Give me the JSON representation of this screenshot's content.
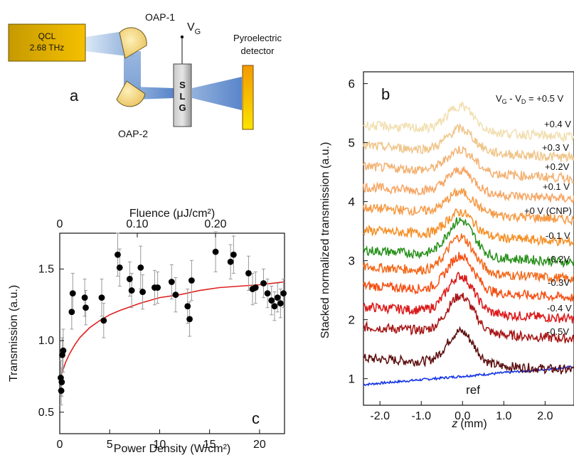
{
  "panel_a": {
    "letter": "a",
    "source_line1": "QCL",
    "source_line2": "2.68 THz",
    "oap1": "OAP-1",
    "oap2": "OAP-2",
    "gate_label": "V",
    "gate_sub": "G",
    "slg_letters": [
      "S",
      "L",
      "G"
    ],
    "detector_line1": "Pyroelectric",
    "detector_line2": "detector"
  },
  "chart_data": [
    {
      "type": "scatter",
      "panel_letter": "c",
      "xlabel": "Power Density (W/cm²)",
      "x_top_label": "Fluence (μJ/cm²)",
      "ylabel": "Transmission (a.u.)",
      "xlim": [
        0,
        22.5
      ],
      "ylim": [
        0.35,
        1.75
      ],
      "x_ticks": [
        "0",
        "5",
        "10",
        "15",
        "20"
      ],
      "x_top_ticks": [
        "0",
        "0.10",
        "0.20"
      ],
      "y_ticks": [
        "0.5",
        "1.0",
        "1.5"
      ],
      "points": [
        {
          "x": 0.1,
          "y": 0.74,
          "err": 0.12
        },
        {
          "x": 0.15,
          "y": 0.65,
          "err": 0.1
        },
        {
          "x": 0.2,
          "y": 0.71,
          "err": 0.1
        },
        {
          "x": 0.25,
          "y": 0.9,
          "err": 0.12
        },
        {
          "x": 0.35,
          "y": 0.93,
          "err": 0.15
        },
        {
          "x": 1.2,
          "y": 1.2,
          "err": 0.12
        },
        {
          "x": 1.3,
          "y": 1.33,
          "err": 0.14
        },
        {
          "x": 2.5,
          "y": 1.3,
          "err": 0.13
        },
        {
          "x": 2.6,
          "y": 1.23,
          "err": 0.12
        },
        {
          "x": 4.2,
          "y": 1.3,
          "err": 0.13
        },
        {
          "x": 4.4,
          "y": 1.14,
          "err": 0.12
        },
        {
          "x": 5.8,
          "y": 1.6,
          "err": 0.15
        },
        {
          "x": 6.0,
          "y": 1.51,
          "err": 0.13
        },
        {
          "x": 7.0,
          "y": 1.43,
          "err": 0.12
        },
        {
          "x": 7.2,
          "y": 1.35,
          "err": 0.12
        },
        {
          "x": 8.1,
          "y": 1.51,
          "err": 0.15
        },
        {
          "x": 8.3,
          "y": 1.34,
          "err": 0.12
        },
        {
          "x": 9.5,
          "y": 1.37,
          "err": 0.12
        },
        {
          "x": 9.8,
          "y": 1.37,
          "err": 0.11
        },
        {
          "x": 11.2,
          "y": 1.41,
          "err": 0.12
        },
        {
          "x": 11.6,
          "y": 1.32,
          "err": 0.12
        },
        {
          "x": 12.8,
          "y": 1.24,
          "err": 0.12
        },
        {
          "x": 13.0,
          "y": 1.15,
          "err": 0.12
        },
        {
          "x": 13.2,
          "y": 1.42,
          "err": 0.14
        },
        {
          "x": 15.6,
          "y": 1.62,
          "err": 0.14
        },
        {
          "x": 17.1,
          "y": 1.55,
          "err": 0.12
        },
        {
          "x": 17.4,
          "y": 1.6,
          "err": 0.13
        },
        {
          "x": 18.9,
          "y": 1.47,
          "err": 0.12
        },
        {
          "x": 19.3,
          "y": 1.36,
          "err": 0.11
        },
        {
          "x": 19.6,
          "y": 1.37,
          "err": 0.11
        },
        {
          "x": 20.4,
          "y": 1.4,
          "err": 0.1
        },
        {
          "x": 20.8,
          "y": 1.33,
          "err": 0.1
        },
        {
          "x": 21.2,
          "y": 1.28,
          "err": 0.1
        },
        {
          "x": 21.5,
          "y": 1.24,
          "err": 0.1
        },
        {
          "x": 21.8,
          "y": 1.3,
          "err": 0.1
        },
        {
          "x": 22.1,
          "y": 1.26,
          "err": 0.1
        },
        {
          "x": 22.4,
          "y": 1.33,
          "err": 0.1
        }
      ],
      "fit_curve": {
        "color": "#e02020",
        "x": [
          0.05,
          0.3,
          0.6,
          1,
          1.5,
          2,
          3,
          4,
          5,
          6,
          8,
          10,
          12,
          14,
          16,
          18,
          20,
          22.5
        ],
        "y": [
          0.74,
          0.79,
          0.85,
          0.91,
          0.97,
          1.02,
          1.09,
          1.14,
          1.18,
          1.21,
          1.26,
          1.3,
          1.32,
          1.35,
          1.37,
          1.38,
          1.39,
          1.41
        ]
      },
      "marker_color": "#000000"
    },
    {
      "type": "line",
      "panel_letter": "b",
      "xlabel_italic": "z",
      "xlabel_unit": "(mm)",
      "ylabel": "Stacked normalized transmission (a.u.)",
      "xlim": [
        -2.4,
        2.7
      ],
      "ylim": [
        0.55,
        6.2
      ],
      "x_ticks": [
        "-2.0",
        "-1.0",
        "0.0",
        "1.0",
        "2.0"
      ],
      "y_ticks": [
        "1",
        "2",
        "3",
        "4",
        "5",
        "6"
      ],
      "series": [
        {
          "name": "V_G - V_D = +0.5 V",
          "label_parts": [
            "V",
            "G",
            " - V",
            "D",
            " = +0.5 V"
          ],
          "color": "#f1dfb0",
          "offset": 5.2,
          "peak": 0.42
        },
        {
          "name": "+0.4 V",
          "color": "#efc58a",
          "offset": 4.85,
          "peak": 0.38
        },
        {
          "name": "+0.3 V",
          "color": "#f3b273",
          "offset": 4.5,
          "peak": 0.38
        },
        {
          "name": "+0.2V",
          "color": "#f6a563",
          "offset": 4.15,
          "peak": 0.38
        },
        {
          "name": "+0.1 V",
          "color": "#f59a46",
          "offset": 3.8,
          "peak": 0.36
        },
        {
          "name": "+0 V (CNP)",
          "color": "#f58f26",
          "offset": 3.42,
          "peak": 0.4
        },
        {
          "name": "-0.1 V",
          "color": "#27901a",
          "offset": 3.08,
          "peak": 0.6
        },
        {
          "name": "-0.2V",
          "color": "#f36a1c",
          "offset": 2.8,
          "peak": 0.6
        },
        {
          "name": "-0.3V",
          "color": "#f54e12",
          "offset": 2.48,
          "peak": 0.6
        },
        {
          "name": "-0.4 V",
          "color": "#dc1818",
          "offset": 2.12,
          "peak": 0.62
        },
        {
          "name": "-0.5V",
          "color": "#a61414",
          "offset": 1.78,
          "peak": 0.62
        },
        {
          "name": "",
          "color": "#5d0e0e",
          "offset": 1.25,
          "peak": 0.55
        }
      ],
      "reference": {
        "name": "ref",
        "color": "#1434e6",
        "y_start": 0.9,
        "y_end": 1.2
      }
    }
  ]
}
